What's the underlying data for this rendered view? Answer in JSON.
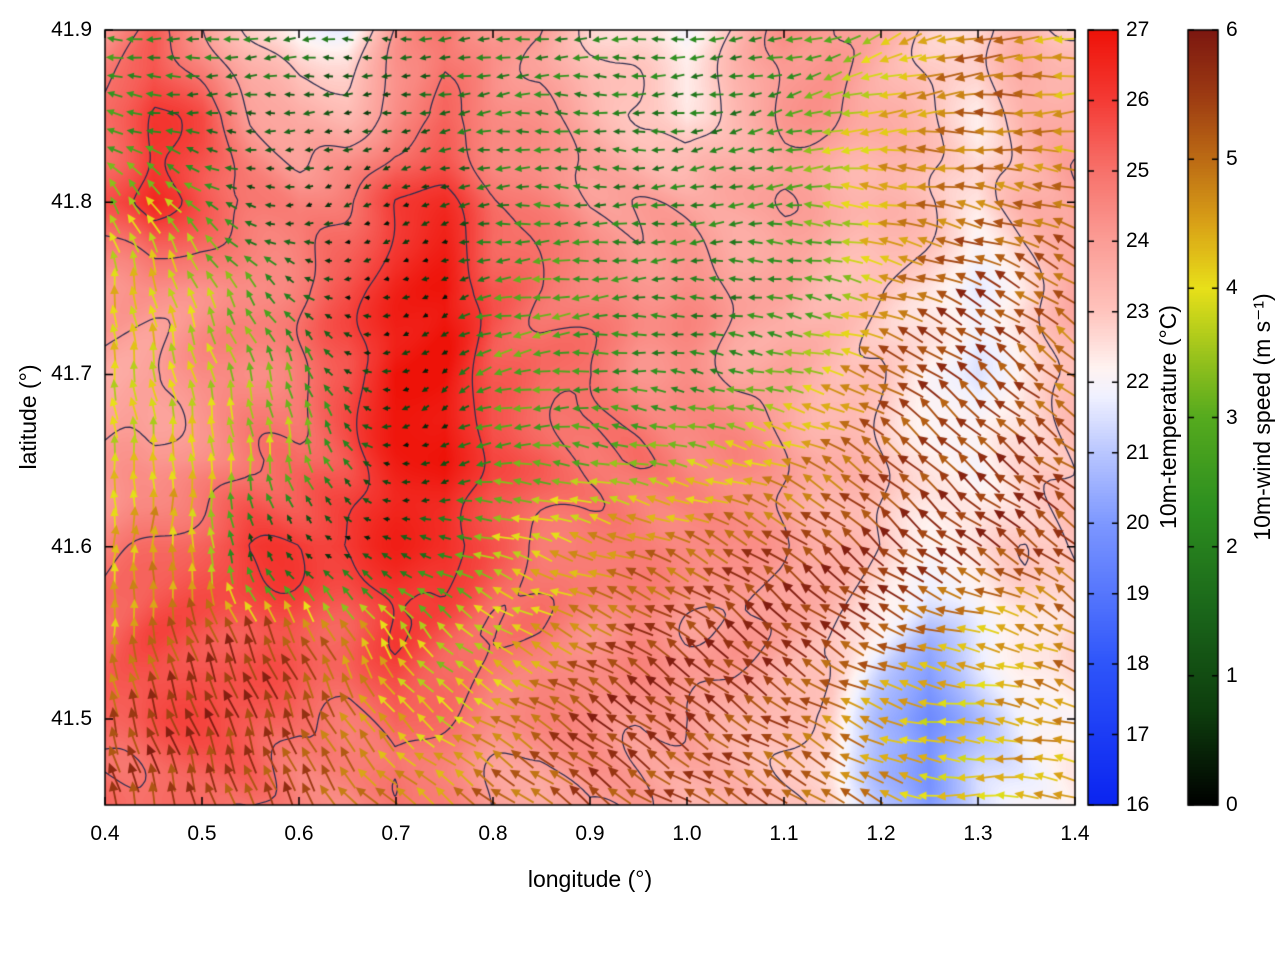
{
  "figure": {
    "background": "#ffffff"
  },
  "axes": {
    "xlabel": "longitude (°)",
    "ylabel": "latitude (°)",
    "x_ticks": [
      "0.4",
      "0.5",
      "0.6",
      "0.7",
      "0.8",
      "0.9",
      "1.0",
      "1.1",
      "1.2",
      "1.3",
      "1.4"
    ],
    "y_ticks": [
      "41.5",
      "41.6",
      "41.7",
      "41.8",
      "41.9"
    ]
  },
  "colorbars": {
    "temperature": {
      "label": "10m-temperature (°C)",
      "ticks": [
        "16",
        "17",
        "18",
        "19",
        "20",
        "21",
        "22",
        "23",
        "24",
        "25",
        "26",
        "27"
      ],
      "range": [
        16,
        27
      ]
    },
    "wind": {
      "label": "10m-wind speed (m s⁻¹)",
      "ticks": [
        "0",
        "1",
        "2",
        "3",
        "4",
        "5",
        "6"
      ],
      "range": [
        0,
        6
      ]
    }
  },
  "chart_data": {
    "type": "heatmap",
    "layers": [
      "temperature-heatmap",
      "temperature-contours",
      "wind-vector-field"
    ],
    "title": "",
    "xlabel": "longitude (°)",
    "ylabel": "latitude (°)",
    "x_range": [
      0.4,
      1.4
    ],
    "y_range": [
      41.45,
      41.9
    ],
    "grid_note": "grids are 10 rows (lat 41.90 to 41.45, step 0.05, north to south) x 21 cols (lon 0.40 to 1.40, step 0.05)",
    "temperature": {
      "label": "10m-temperature (°C)",
      "units": "°C",
      "range": [
        16,
        27
      ],
      "grid": [
        [
          24,
          25,
          24,
          23,
          22,
          22,
          24,
          25,
          24,
          24,
          23,
          22.5,
          22,
          23,
          24,
          24,
          23.5,
          23,
          23,
          23.5,
          23
        ],
        [
          25,
          26,
          25.5,
          24,
          23.5,
          23.5,
          24.5,
          25,
          24.5,
          24,
          23.5,
          23,
          22.5,
          23.5,
          24,
          24,
          23.5,
          23,
          22.5,
          23.5,
          24
        ],
        [
          25.5,
          26.5,
          25.5,
          25,
          24.5,
          25,
          26,
          26,
          25,
          24.5,
          24,
          24,
          24,
          24,
          24,
          23.5,
          23.5,
          23,
          22.5,
          23.5,
          24
        ],
        [
          24.5,
          24.5,
          24.5,
          24.5,
          25,
          25.5,
          26.5,
          27,
          25.5,
          25,
          24.5,
          24.5,
          24.5,
          24,
          24,
          23.5,
          23,
          22.5,
          21.5,
          22.5,
          23.5
        ],
        [
          24,
          24,
          24.5,
          24.5,
          25,
          25.5,
          27,
          27,
          25.5,
          25,
          25,
          24.5,
          24.5,
          24,
          24,
          23.5,
          23,
          22,
          21.5,
          22.5,
          23
        ],
        [
          24,
          24,
          24.5,
          25,
          25,
          25.5,
          26.5,
          27,
          25.5,
          25.5,
          25,
          25,
          24.5,
          24.5,
          24,
          23.5,
          23,
          22.5,
          22,
          22.5,
          23
        ],
        [
          24.5,
          25,
          25.5,
          26,
          26,
          26,
          26.5,
          26.5,
          25.5,
          25,
          25,
          24.5,
          24.5,
          24,
          24,
          23.5,
          23,
          22.5,
          22.5,
          23,
          23
        ],
        [
          25,
          25.5,
          25.5,
          25.5,
          25.5,
          25.5,
          26,
          25.5,
          25,
          25,
          24.5,
          24.5,
          24,
          24,
          23.5,
          23,
          22,
          21,
          22,
          22.5,
          23
        ],
        [
          25,
          25.5,
          25.5,
          25.5,
          25,
          25,
          25.5,
          25,
          24.5,
          24.5,
          24.5,
          24,
          24,
          23.5,
          23,
          22.5,
          20.5,
          19.5,
          21,
          22,
          22.5
        ],
        [
          25,
          25,
          25,
          25,
          24.5,
          24.5,
          25,
          24.5,
          24,
          23.5,
          24,
          24,
          23.5,
          23.5,
          23,
          22.5,
          21,
          20,
          21.5,
          22,
          22.5
        ]
      ]
    },
    "wind": {
      "label": "10m-wind speed (m s⁻¹)",
      "units": "m s⁻¹",
      "range": [
        0,
        6
      ],
      "direction_convention": "degrees the arrow points toward: 0=east, 90=north, 180=west",
      "speed_grid": [
        [
          2.5,
          2,
          2,
          2,
          2,
          1.5,
          1.5,
          2,
          2,
          2,
          2,
          2,
          2,
          2,
          2.5,
          3,
          4,
          4.5,
          5,
          4.5,
          4
        ],
        [
          2.5,
          2,
          1.5,
          1.5,
          1.5,
          1,
          1,
          1.5,
          2,
          2,
          2,
          2,
          2,
          2,
          2.5,
          3.5,
          4,
          4.5,
          5,
          5,
          4.5
        ],
        [
          3.5,
          4,
          3,
          1,
          0.5,
          0.5,
          0.5,
          1,
          2,
          2.5,
          2,
          2,
          2,
          2,
          2.5,
          3.5,
          4.5,
          5,
          5,
          5,
          5
        ],
        [
          4,
          4,
          3.5,
          3,
          1.5,
          0.5,
          0.5,
          0.5,
          2.5,
          3,
          2.5,
          2,
          2,
          2,
          2.5,
          3,
          4.5,
          5,
          5.5,
          5,
          5
        ],
        [
          4,
          4,
          4,
          3.5,
          3,
          1,
          0.5,
          0.5,
          3,
          3,
          2.5,
          2.5,
          2,
          2.5,
          3,
          4,
          5,
          5.5,
          5.5,
          5.5,
          5
        ],
        [
          4,
          4,
          4,
          3.5,
          3.5,
          2,
          0.5,
          1,
          3,
          3,
          3,
          3,
          3.5,
          4,
          4.5,
          5,
          5.5,
          5.5,
          5.5,
          5.5,
          5
        ],
        [
          4,
          4.5,
          4,
          1,
          0.5,
          0.5,
          1,
          2,
          3.5,
          4,
          4.5,
          5,
          5,
          5.5,
          5.5,
          5.5,
          5.5,
          5.5,
          5.5,
          5.5,
          5.5
        ],
        [
          4.5,
          5,
          5.5,
          5.5,
          5,
          4.5,
          4,
          3.5,
          4,
          4.5,
          5,
          5.5,
          5.5,
          5.5,
          5.5,
          5.5,
          5.5,
          5,
          4.5,
          4.5,
          5
        ],
        [
          5,
          5.5,
          5.5,
          5.5,
          5.5,
          5,
          4.5,
          4,
          4.5,
          5,
          5.5,
          5.5,
          5.5,
          5.5,
          5.5,
          5,
          4.5,
          4,
          4,
          4.5,
          4.5
        ],
        [
          5.5,
          5.5,
          5.5,
          5.5,
          5.5,
          5,
          4.5,
          4.5,
          5,
          5,
          5.5,
          5.5,
          5.5,
          5.5,
          5,
          5,
          4.5,
          4,
          4,
          4.5,
          4.5
        ]
      ],
      "direction_deg_grid": [
        [
          170,
          175,
          180,
          185,
          185,
          180,
          180,
          185,
          185,
          180,
          180,
          185,
          190,
          190,
          190,
          195,
          200,
          200,
          195,
          190,
          185
        ],
        [
          160,
          170,
          180,
          185,
          190,
          190,
          185,
          185,
          185,
          180,
          180,
          185,
          190,
          190,
          190,
          190,
          190,
          190,
          185,
          180,
          180
        ],
        [
          120,
          130,
          150,
          170,
          190,
          200,
          200,
          195,
          190,
          185,
          180,
          180,
          185,
          185,
          185,
          180,
          175,
          170,
          165,
          160,
          160
        ],
        [
          100,
          105,
          110,
          120,
          140,
          180,
          200,
          210,
          190,
          185,
          180,
          180,
          180,
          180,
          175,
          170,
          160,
          155,
          150,
          150,
          150
        ],
        [
          95,
          95,
          100,
          105,
          110,
          150,
          200,
          220,
          190,
          185,
          180,
          180,
          175,
          170,
          165,
          160,
          150,
          145,
          145,
          145,
          145
        ],
        [
          90,
          92,
          95,
          100,
          105,
          120,
          180,
          200,
          185,
          180,
          175,
          170,
          165,
          160,
          155,
          150,
          145,
          140,
          140,
          140,
          140
        ],
        [
          90,
          90,
          95,
          110,
          130,
          150,
          160,
          170,
          170,
          165,
          160,
          155,
          150,
          150,
          148,
          145,
          142,
          140,
          140,
          140,
          140
        ],
        [
          95,
          100,
          105,
          110,
          115,
          120,
          130,
          140,
          145,
          148,
          150,
          150,
          148,
          145,
          145,
          145,
          150,
          160,
          170,
          165,
          155
        ],
        [
          100,
          105,
          108,
          112,
          118,
          125,
          132,
          140,
          145,
          148,
          148,
          148,
          147,
          145,
          145,
          148,
          160,
          175,
          180,
          170,
          160
        ],
        [
          100,
          105,
          110,
          115,
          120,
          128,
          135,
          140,
          145,
          147,
          148,
          148,
          147,
          146,
          145,
          148,
          162,
          178,
          182,
          172,
          162
        ]
      ]
    },
    "contour_levels": [
      23,
      24,
      25,
      26
    ],
    "colormaps": {
      "temperature_stops": [
        [
          16,
          "#0a24f0"
        ],
        [
          18,
          "#2e55fa"
        ],
        [
          20,
          "#7d97ff"
        ],
        [
          21,
          "#b9c6ff"
        ],
        [
          21.8,
          "#f0f1ff"
        ],
        [
          22.2,
          "#fff3f1"
        ],
        [
          23,
          "#ffc4bd"
        ],
        [
          24,
          "#fb9d96"
        ],
        [
          25,
          "#f7726b"
        ],
        [
          26,
          "#f43b35"
        ],
        [
          27,
          "#ee1208"
        ]
      ],
      "wind_stops": [
        [
          0,
          "#000000"
        ],
        [
          0.7,
          "#0d3c0d"
        ],
        [
          1.5,
          "#1a661a"
        ],
        [
          2.3,
          "#2d8f1f"
        ],
        [
          3,
          "#55aa1e"
        ],
        [
          3.5,
          "#9cc41c"
        ],
        [
          4,
          "#e8e019"
        ],
        [
          4.5,
          "#d9a117"
        ],
        [
          5,
          "#bc6b14"
        ],
        [
          5.5,
          "#9c3a12"
        ],
        [
          6,
          "#7c1710"
        ]
      ],
      "contour_color": "#2e2e50",
      "frame_color": "#000000"
    }
  }
}
